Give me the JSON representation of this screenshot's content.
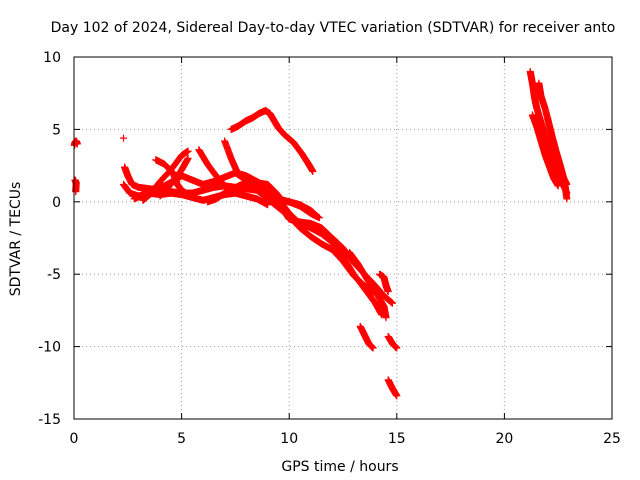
{
  "chart_data": {
    "type": "scatter",
    "title": "Day 102 of 2024, Sidereal Day-to-day VTEC variation (SDTVAR) for receiver anto",
    "xlabel": "GPS time / hours",
    "ylabel": "SDTVAR / TECUs",
    "xlim": [
      0,
      25
    ],
    "ylim": [
      -15,
      10
    ],
    "xticks": [
      0,
      5,
      10,
      15,
      20,
      25
    ],
    "yticks": [
      -15,
      -10,
      -5,
      0,
      5,
      10
    ],
    "grid": true,
    "legend": "none",
    "marker": "+",
    "series": [
      {
        "name": "SDTVAR",
        "color": "#ff0000",
        "segments": [
          [
            [
              0.02,
              3.9
            ],
            [
              0.05,
              4.1
            ],
            [
              0.1,
              4.2
            ],
            [
              0.15,
              4.0
            ]
          ],
          [
            [
              0.05,
              1.5
            ],
            [
              0.1,
              1.3
            ],
            [
              0.08,
              0.7
            ]
          ],
          [
            [
              2.3,
              4.4
            ]
          ],
          [
            [
              2.35,
              2.4
            ],
            [
              2.5,
              1.8
            ],
            [
              2.7,
              1.2
            ],
            [
              3.0,
              1.0
            ],
            [
              3.5,
              0.9
            ],
            [
              4.0,
              0.8
            ],
            [
              4.5,
              0.7
            ],
            [
              5.0,
              0.6
            ],
            [
              5.5,
              0.6
            ],
            [
              6.0,
              0.8
            ],
            [
              6.5,
              1.0
            ],
            [
              7.0,
              1.1
            ],
            [
              7.5,
              1.0
            ],
            [
              8.0,
              0.9
            ],
            [
              8.5,
              0.8
            ],
            [
              9.0,
              0.5
            ],
            [
              9.5,
              0.2
            ],
            [
              10.0,
              0.0
            ],
            [
              10.5,
              -0.3
            ],
            [
              11.0,
              -0.8
            ],
            [
              11.4,
              -1.1
            ]
          ],
          [
            [
              2.3,
              1.2
            ],
            [
              2.6,
              0.6
            ],
            [
              3.0,
              0.4
            ],
            [
              3.5,
              0.6
            ],
            [
              4.0,
              0.5
            ],
            [
              4.5,
              0.6
            ],
            [
              5.0,
              0.5
            ],
            [
              5.5,
              0.3
            ],
            [
              6.0,
              0.1
            ],
            [
              6.5,
              0.3
            ],
            [
              7.0,
              0.5
            ],
            [
              7.5,
              0.6
            ],
            [
              8.0,
              0.4
            ],
            [
              8.5,
              0.2
            ],
            [
              9.0,
              -0.2
            ]
          ],
          [
            [
              2.8,
              0.2
            ],
            [
              3.2,
              0.5
            ],
            [
              3.7,
              0.9
            ],
            [
              4.2,
              1.1
            ],
            [
              4.7,
              1.5
            ],
            [
              5.0,
              1.8
            ],
            [
              5.5,
              1.5
            ],
            [
              6.0,
              1.2
            ],
            [
              6.5,
              1.4
            ],
            [
              7.0,
              1.7
            ],
            [
              7.5,
              2.0
            ],
            [
              8.0,
              1.8
            ],
            [
              8.5,
              1.4
            ],
            [
              9.0,
              1.0
            ],
            [
              9.5,
              0.2
            ],
            [
              10.0,
              -0.8
            ],
            [
              10.5,
              -1.5
            ],
            [
              11.0,
              -1.8
            ],
            [
              11.5,
              -2.2
            ],
            [
              12.0,
              -2.8
            ],
            [
              12.5,
              -3.8
            ],
            [
              13.0,
              -5.0
            ],
            [
              13.5,
              -6.0
            ],
            [
              14.0,
              -7.0
            ],
            [
              14.3,
              -7.8
            ]
          ],
          [
            [
              3.8,
              2.9
            ],
            [
              4.2,
              2.6
            ],
            [
              4.6,
              2.0
            ],
            [
              4.8,
              1.2
            ],
            [
              5.0,
              0.8
            ],
            [
              5.3,
              0.5
            ]
          ],
          [
            [
              3.2,
              0.1
            ],
            [
              3.6,
              0.6
            ],
            [
              4.0,
              1.4
            ],
            [
              4.5,
              2.2
            ],
            [
              5.0,
              3.2
            ],
            [
              5.3,
              3.5
            ]
          ],
          [
            [
              4.0,
              0.4
            ],
            [
              4.5,
              1.2
            ],
            [
              5.0,
              2.2
            ],
            [
              5.3,
              3.0
            ]
          ],
          [
            [
              5.8,
              3.6
            ],
            [
              6.2,
              2.6
            ],
            [
              6.6,
              1.8
            ],
            [
              7.0,
              1.1
            ],
            [
              7.3,
              0.8
            ]
          ],
          [
            [
              6.2,
              0.0
            ],
            [
              6.6,
              0.2
            ],
            [
              7.0,
              0.6
            ],
            [
              7.4,
              0.9
            ],
            [
              7.8,
              1.2
            ],
            [
              8.2,
              1.4
            ],
            [
              8.7,
              1.0
            ],
            [
              9.2,
              0.4
            ],
            [
              9.6,
              -0.3
            ],
            [
              10.0,
              -1.2
            ],
            [
              10.5,
              -1.4
            ],
            [
              11.0,
              -1.5
            ],
            [
              11.5,
              -1.8
            ],
            [
              12.0,
              -2.5
            ],
            [
              12.5,
              -3.2
            ],
            [
              13.0,
              -4.2
            ],
            [
              13.5,
              -5.0
            ],
            [
              14.0,
              -5.8
            ],
            [
              14.4,
              -6.5
            ],
            [
              14.8,
              -7.0
            ]
          ],
          [
            [
              7.0,
              4.2
            ],
            [
              7.3,
              3.0
            ],
            [
              7.6,
              2.0
            ],
            [
              8.0,
              1.5
            ],
            [
              8.5,
              0.8
            ],
            [
              9.0,
              0.2
            ],
            [
              9.5,
              -0.4
            ],
            [
              10.0,
              -1.0
            ],
            [
              10.5,
              -1.8
            ],
            [
              11.0,
              -2.4
            ],
            [
              11.5,
              -2.9
            ],
            [
              12.0,
              -3.3
            ],
            [
              12.5,
              -4.1
            ],
            [
              13.0,
              -5.1
            ],
            [
              13.5,
              -5.8
            ],
            [
              13.9,
              -6.3
            ]
          ],
          [
            [
              7.5,
              2.0
            ],
            [
              8.0,
              1.5
            ],
            [
              8.5,
              1.3
            ],
            [
              9.0,
              1.2
            ],
            [
              9.4,
              0.6
            ],
            [
              9.6,
              0.2
            ]
          ],
          [
            [
              7.3,
              5.0
            ],
            [
              7.6,
              5.2
            ],
            [
              8.0,
              5.6
            ],
            [
              8.3,
              5.8
            ],
            [
              8.6,
              6.1
            ],
            [
              8.9,
              6.3
            ],
            [
              9.1,
              6.1
            ],
            [
              9.3,
              5.6
            ],
            [
              9.5,
              5.1
            ],
            [
              9.8,
              4.6
            ],
            [
              10.2,
              4.1
            ],
            [
              10.6,
              3.3
            ],
            [
              10.9,
              2.6
            ],
            [
              11.1,
              2.1
            ]
          ],
          [
            [
              9.0,
              0.0
            ],
            [
              9.5,
              0.1
            ],
            [
              10.0,
              0.0
            ],
            [
              10.5,
              -0.2
            ],
            [
              11.0,
              -0.6
            ],
            [
              11.3,
              -1.0
            ]
          ],
          [
            [
              12.8,
              -3.5
            ],
            [
              13.2,
              -4.3
            ],
            [
              13.6,
              -5.3
            ],
            [
              14.0,
              -6.2
            ],
            [
              14.4,
              -7.2
            ],
            [
              14.5,
              -8.0
            ]
          ],
          [
            [
              14.2,
              -5.0
            ],
            [
              14.4,
              -5.2
            ],
            [
              14.5,
              -5.8
            ],
            [
              14.6,
              -6.2
            ]
          ],
          [
            [
              13.3,
              -8.6
            ],
            [
              13.5,
              -9.2
            ],
            [
              13.7,
              -9.8
            ],
            [
              13.9,
              -10.1
            ]
          ],
          [
            [
              14.6,
              -9.3
            ],
            [
              14.8,
              -9.8
            ],
            [
              15.0,
              -10.1
            ]
          ],
          [
            [
              14.6,
              -12.3
            ],
            [
              14.8,
              -12.9
            ],
            [
              15.0,
              -13.4
            ]
          ],
          [
            [
              21.2,
              9.0
            ],
            [
              21.3,
              8.2
            ],
            [
              21.4,
              7.2
            ],
            [
              21.5,
              6.5
            ],
            [
              21.7,
              5.5
            ],
            [
              21.9,
              4.5
            ],
            [
              22.1,
              3.6
            ],
            [
              22.3,
              2.8
            ],
            [
              22.5,
              2.0
            ],
            [
              22.7,
              1.3
            ],
            [
              22.9,
              0.6
            ]
          ],
          [
            [
              21.3,
              6.0
            ],
            [
              21.5,
              5.2
            ],
            [
              21.7,
              4.2
            ],
            [
              21.9,
              3.2
            ],
            [
              22.1,
              2.4
            ],
            [
              22.3,
              1.6
            ],
            [
              22.5,
              1.1
            ]
          ],
          [
            [
              21.6,
              8.2
            ],
            [
              21.7,
              7.3
            ],
            [
              21.9,
              6.4
            ],
            [
              22.1,
              5.2
            ],
            [
              22.3,
              4.0
            ],
            [
              22.5,
              2.8
            ],
            [
              22.7,
              1.8
            ],
            [
              22.9,
              1.2
            ]
          ],
          [
            [
              22.0,
              5.8
            ],
            [
              22.2,
              4.6
            ],
            [
              22.4,
              3.5
            ],
            [
              22.6,
              2.5
            ],
            [
              22.8,
              1.4
            ],
            [
              22.9,
              0.2
            ]
          ]
        ]
      }
    ]
  }
}
